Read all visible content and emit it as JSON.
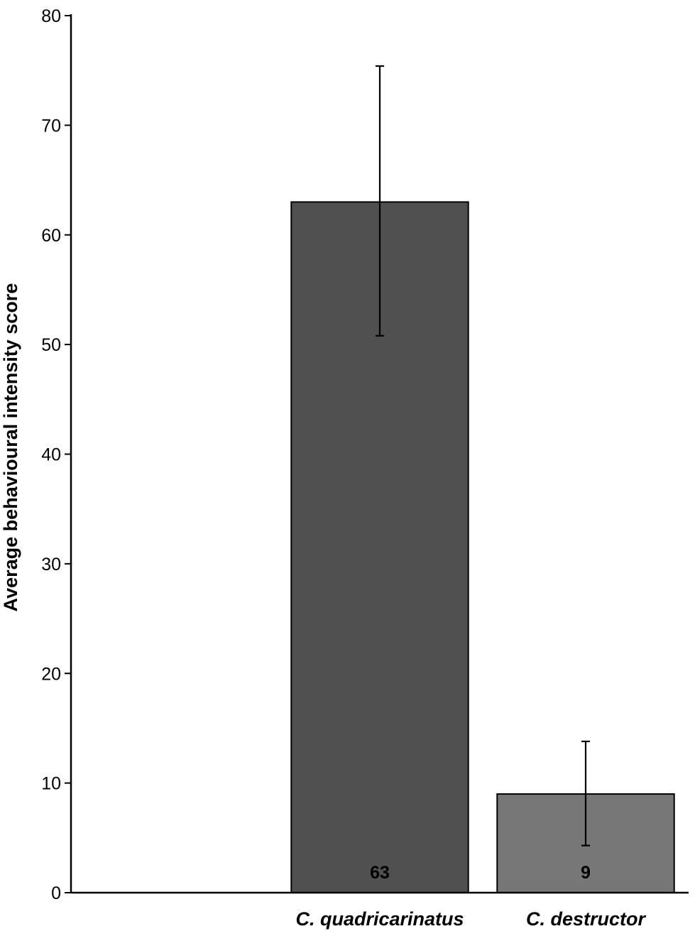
{
  "chart_data": {
    "type": "bar",
    "categories": [
      "",
      "C. quadricarinatus",
      "C. destructor"
    ],
    "values": [
      null,
      63,
      9
    ],
    "error_bars": [
      null,
      [
        50.8,
        75.4
      ],
      [
        4.3,
        13.8
      ]
    ],
    "data_labels": [
      "",
      "63",
      "9"
    ],
    "bar_colors": [
      "",
      "#505050",
      "#777777"
    ],
    "xlabel": "",
    "ylabel": "Average behavioural intensity score",
    "ylim": [
      0,
      80
    ],
    "yticks": [
      0,
      10,
      20,
      30,
      40,
      50,
      60,
      70,
      80
    ],
    "ytick_labels": [
      "0",
      "10",
      "20",
      "30",
      "40",
      "50",
      "60",
      "70",
      "80"
    ],
    "grid": false,
    "legend": "none"
  }
}
